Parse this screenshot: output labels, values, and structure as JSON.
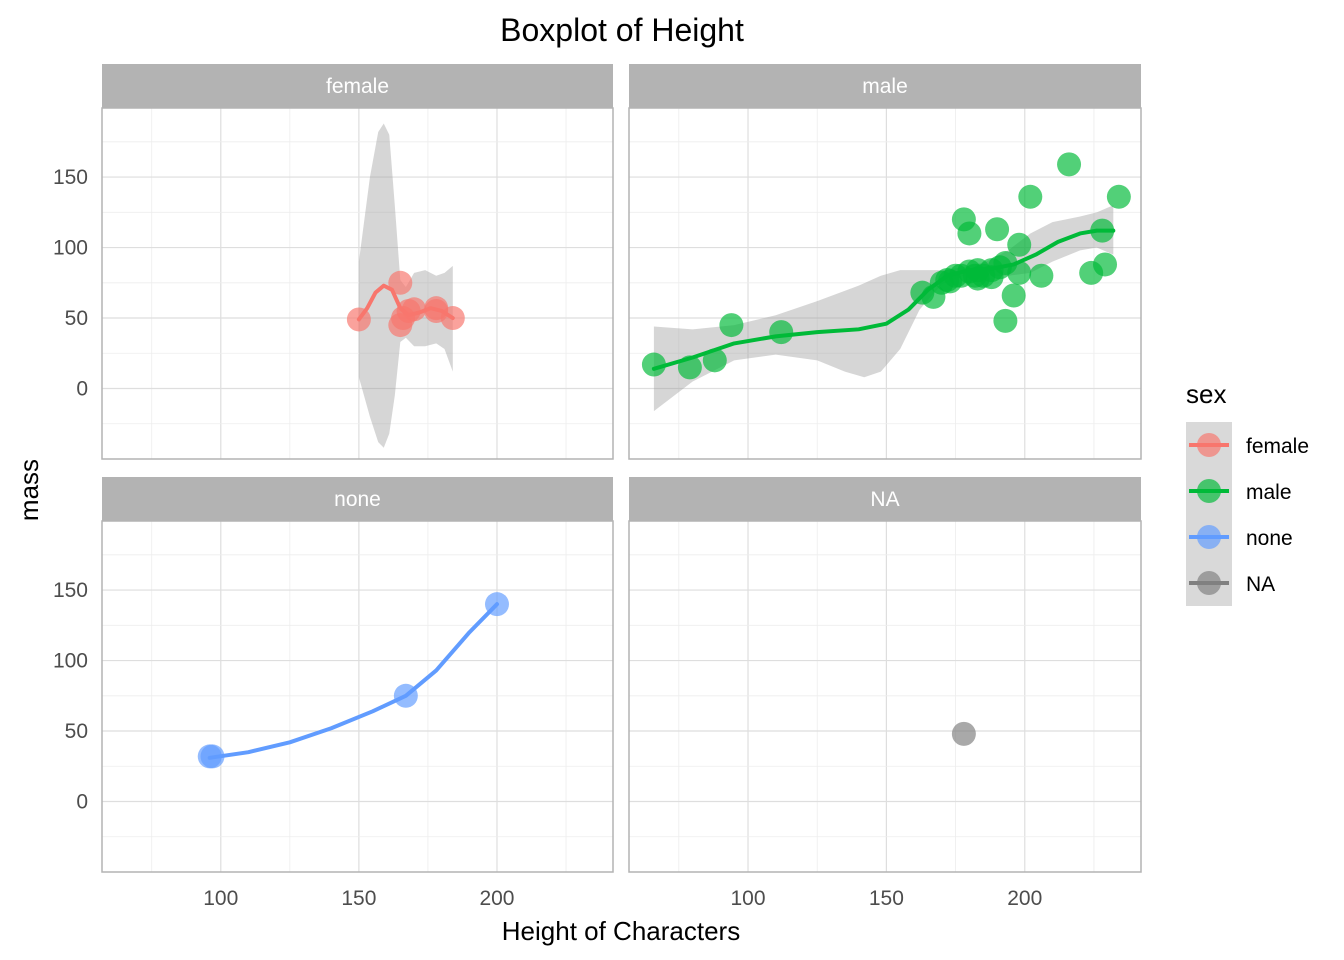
{
  "chart_data": {
    "type": "scatter",
    "title": "Boxplot of Height",
    "xlabel": "Height of Characters",
    "ylabel": "mass",
    "xlim": [
      57,
      242
    ],
    "ylim": [
      -50,
      199
    ],
    "x_ticks": [
      100,
      150,
      200
    ],
    "y_ticks": [
      0,
      50,
      100,
      150
    ],
    "grid": true,
    "legend": {
      "title": "sex",
      "position": "right"
    },
    "facets": [
      {
        "name": "female",
        "color": "#F8766D",
        "points": [
          [
            150,
            49
          ],
          [
            165,
            75
          ],
          [
            165,
            45
          ],
          [
            166,
            50
          ],
          [
            168,
            55
          ],
          [
            170,
            56.2
          ],
          [
            178,
            55
          ],
          [
            178,
            57
          ],
          [
            184,
            50
          ]
        ],
        "smooth": [
          [
            150,
            49
          ],
          [
            153,
            57
          ],
          [
            156,
            68
          ],
          [
            159,
            73
          ],
          [
            162,
            70
          ],
          [
            165,
            57
          ],
          [
            168,
            52
          ],
          [
            172,
            54
          ],
          [
            176,
            57
          ],
          [
            180,
            55
          ],
          [
            184,
            50
          ]
        ],
        "band_upper": [
          [
            150,
            90
          ],
          [
            154,
            150
          ],
          [
            157,
            182
          ],
          [
            159,
            188
          ],
          [
            161,
            180
          ],
          [
            163,
            130
          ],
          [
            165,
            77
          ],
          [
            167,
            72
          ],
          [
            170,
            82
          ],
          [
            174,
            84
          ],
          [
            178,
            80
          ],
          [
            181,
            82
          ],
          [
            184,
            87
          ]
        ],
        "band_lower": [
          [
            150,
            8
          ],
          [
            154,
            -20
          ],
          [
            157,
            -38
          ],
          [
            159,
            -42
          ],
          [
            161,
            -32
          ],
          [
            163,
            -5
          ],
          [
            165,
            33
          ],
          [
            167,
            36
          ],
          [
            170,
            30
          ],
          [
            174,
            30
          ],
          [
            178,
            32
          ],
          [
            181,
            28
          ],
          [
            184,
            12
          ]
        ]
      },
      {
        "name": "male",
        "color": "#00BA38",
        "points": [
          [
            66,
            17
          ],
          [
            79,
            15
          ],
          [
            88,
            20
          ],
          [
            94,
            45
          ],
          [
            112,
            40
          ],
          [
            163,
            68
          ],
          [
            167,
            65
          ],
          [
            170,
            75
          ],
          [
            172,
            77
          ],
          [
            173,
            76
          ],
          [
            175,
            80
          ],
          [
            177,
            80
          ],
          [
            178,
            120
          ],
          [
            180,
            110
          ],
          [
            180,
            83
          ],
          [
            182,
            80
          ],
          [
            183,
            78
          ],
          [
            183,
            84
          ],
          [
            185,
            80
          ],
          [
            188,
            84
          ],
          [
            188,
            79
          ],
          [
            190,
            113
          ],
          [
            191,
            86
          ],
          [
            193,
            48
          ],
          [
            193,
            89
          ],
          [
            196,
            66
          ],
          [
            198,
            82
          ],
          [
            198,
            102
          ],
          [
            202,
            136
          ],
          [
            206,
            80
          ],
          [
            216,
            159
          ],
          [
            224,
            82
          ],
          [
            228,
            112
          ],
          [
            229,
            88
          ],
          [
            234,
            136
          ]
        ],
        "smooth": [
          [
            66,
            14
          ],
          [
            80,
            22
          ],
          [
            95,
            32
          ],
          [
            110,
            37
          ],
          [
            125,
            40
          ],
          [
            140,
            42
          ],
          [
            150,
            46
          ],
          [
            158,
            56
          ],
          [
            165,
            70
          ],
          [
            172,
            80
          ],
          [
            180,
            84
          ],
          [
            188,
            85
          ],
          [
            196,
            88
          ],
          [
            204,
            95
          ],
          [
            212,
            104
          ],
          [
            220,
            110
          ],
          [
            226,
            112
          ],
          [
            232,
            112
          ]
        ],
        "band_upper": [
          [
            66,
            44
          ],
          [
            80,
            42
          ],
          [
            95,
            45
          ],
          [
            110,
            52
          ],
          [
            125,
            62
          ],
          [
            140,
            73
          ],
          [
            148,
            80
          ],
          [
            155,
            84
          ],
          [
            162,
            84
          ],
          [
            170,
            84
          ],
          [
            178,
            86
          ],
          [
            186,
            90
          ],
          [
            194,
            98
          ],
          [
            202,
            110
          ],
          [
            210,
            118
          ],
          [
            220,
            122
          ],
          [
            226,
            125
          ],
          [
            232,
            130
          ]
        ],
        "band_lower": [
          [
            66,
            -16
          ],
          [
            80,
            5
          ],
          [
            95,
            20
          ],
          [
            110,
            24
          ],
          [
            125,
            20
          ],
          [
            135,
            12
          ],
          [
            142,
            8
          ],
          [
            148,
            12
          ],
          [
            155,
            28
          ],
          [
            162,
            56
          ],
          [
            170,
            74
          ],
          [
            178,
            80
          ],
          [
            186,
            80
          ],
          [
            194,
            80
          ],
          [
            202,
            82
          ],
          [
            210,
            90
          ],
          [
            220,
            98
          ],
          [
            226,
            100
          ],
          [
            232,
            95
          ]
        ]
      },
      {
        "name": "none",
        "color": "#619CFF",
        "points": [
          [
            96,
            32
          ],
          [
            97,
            32
          ],
          [
            167,
            75
          ],
          [
            200,
            140
          ]
        ],
        "smooth": [
          [
            96,
            31
          ],
          [
            110,
            35
          ],
          [
            125,
            42
          ],
          [
            140,
            52
          ],
          [
            155,
            64
          ],
          [
            167,
            75
          ],
          [
            178,
            93
          ],
          [
            190,
            120
          ],
          [
            200,
            140
          ]
        ],
        "band_upper": [],
        "band_lower": []
      },
      {
        "name": "NA",
        "color": "#808080",
        "points": [
          [
            178,
            48
          ]
        ],
        "smooth": [],
        "band_upper": [],
        "band_lower": []
      }
    ]
  }
}
